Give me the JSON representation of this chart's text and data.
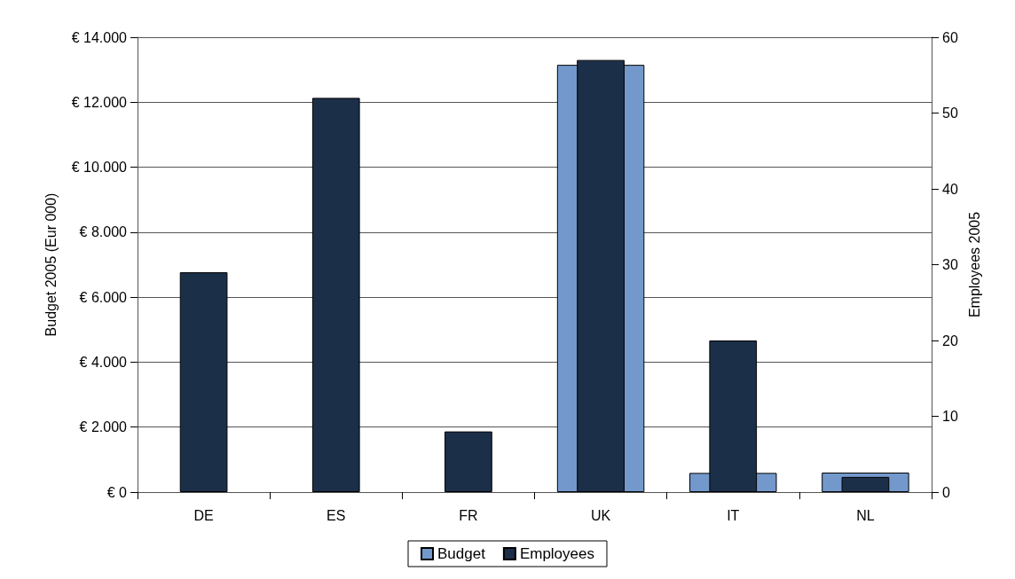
{
  "chart_data": {
    "type": "bar",
    "categories": [
      "DE",
      "ES",
      "FR",
      "UK",
      "IT",
      "NL"
    ],
    "series": [
      {
        "name": "Budget",
        "color": "#7399cc",
        "values": [
          null,
          null,
          null,
          13150,
          590,
          600
        ]
      },
      {
        "name": "Employees",
        "color": "#1c2f49",
        "values": [
          29,
          52,
          8,
          57,
          20,
          2
        ],
        "axis": "y2"
      }
    ],
    "ylabel": "Budget 2005 (Eur 000)",
    "y2label": "Employees 2005",
    "ylim": [
      0,
      14000
    ],
    "yticks": [
      {
        "value": 0,
        "label": "€ 0"
      },
      {
        "value": 2000,
        "label": "€ 2.000"
      },
      {
        "value": 4000,
        "label": "€ 4.000"
      },
      {
        "value": 6000,
        "label": "€ 6.000"
      },
      {
        "value": 8000,
        "label": "€ 8.000"
      },
      {
        "value": 10000,
        "label": "€ 10.000"
      },
      {
        "value": 12000,
        "label": "€ 12.000"
      },
      {
        "value": 14000,
        "label": "€ 14.000"
      }
    ],
    "y2lim": [
      0,
      60
    ],
    "y2ticks": [
      0,
      10,
      20,
      30,
      40,
      50,
      60
    ],
    "grid": "y",
    "legend": "bottom"
  }
}
